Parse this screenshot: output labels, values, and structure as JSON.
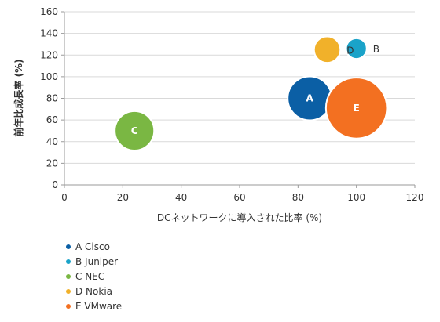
{
  "chart_data": {
    "type": "bubble",
    "xlabel": "DCネットワークに導入された比率 (%)",
    "ylabel": "前年比成長率 (%)",
    "xlim": [
      0,
      120
    ],
    "ylim": [
      0,
      160
    ],
    "xticks": [
      0,
      20,
      40,
      60,
      80,
      100,
      120
    ],
    "yticks": [
      0,
      20,
      40,
      60,
      80,
      100,
      120,
      140,
      160
    ],
    "grid": "horizontal",
    "legend_position": "bottom-left",
    "series": [
      {
        "letter": "A",
        "name": "A Cisco",
        "x": 84,
        "y": 80,
        "size": 1.0,
        "color": "#0b5fa5",
        "label_inside": true
      },
      {
        "letter": "B",
        "name": "B Juniper",
        "x": 100,
        "y": 126,
        "size": 0.22,
        "color": "#1aa3c9",
        "label_inside": false
      },
      {
        "letter": "C",
        "name": "C NEC",
        "x": 24,
        "y": 50,
        "size": 0.8,
        "color": "#7ab743",
        "label_inside": true
      },
      {
        "letter": "D",
        "name": "D Nokia",
        "x": 90,
        "y": 125,
        "size": 0.36,
        "color": "#f1b12a",
        "label_inside": false
      },
      {
        "letter": "E",
        "name": "E VMware",
        "x": 100,
        "y": 71,
        "size": 1.92,
        "color": "#f37021",
        "label_inside": true
      }
    ]
  }
}
